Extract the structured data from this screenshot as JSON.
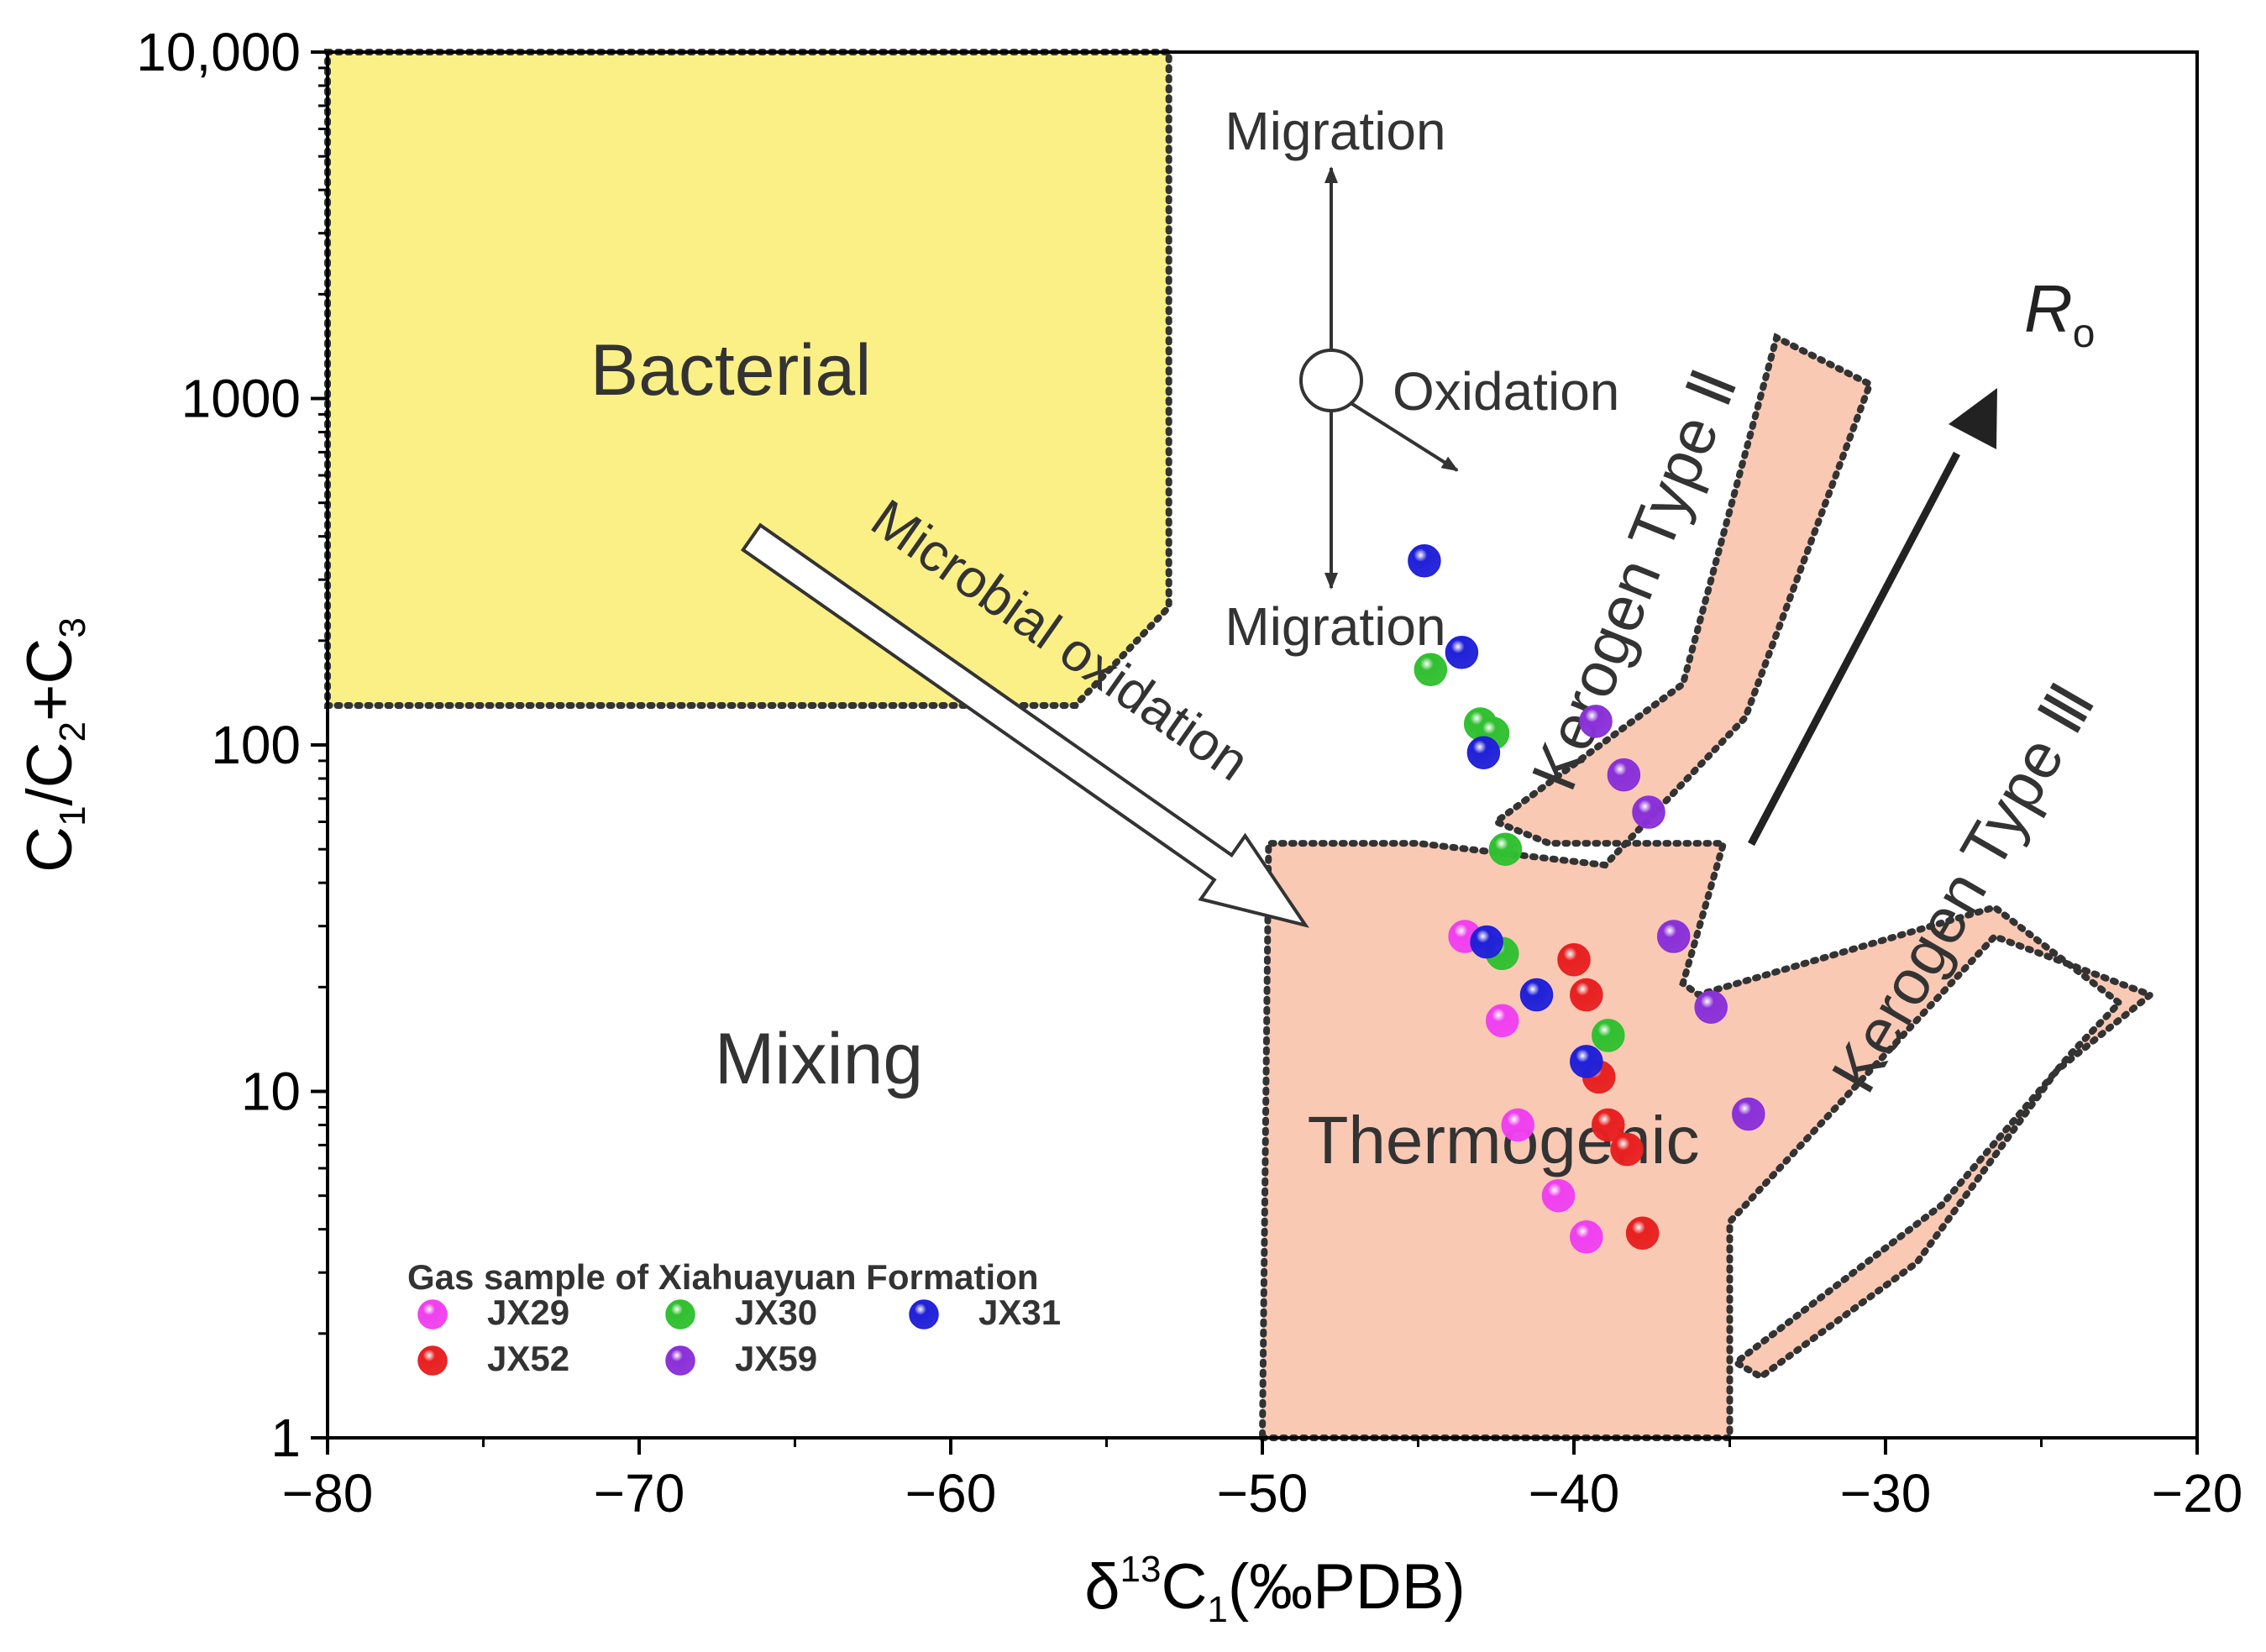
{
  "chart_data": {
    "type": "scatter",
    "xlabel": {
      "prefix": "δ",
      "sup": "13",
      "main": "C",
      "sub": "1",
      "tail": "(‰PDB)"
    },
    "ylabel": {
      "parts": [
        {
          "t": "C",
          "k": "n"
        },
        {
          "t": "1",
          "k": "sub"
        },
        {
          "t": "/C",
          "k": "n"
        },
        {
          "t": "2",
          "k": "sub"
        },
        {
          "t": "+C",
          "k": "n"
        },
        {
          "t": "3",
          "k": "sub"
        }
      ]
    },
    "xlim": [
      -80,
      -20
    ],
    "ylim": [
      1,
      10000
    ],
    "yscale": "log",
    "xticks": [
      -80,
      -70,
      -60,
      -50,
      -40,
      -30,
      -20
    ],
    "xtick_labels": [
      "−80",
      "−70",
      "−60",
      "−50",
      "−40",
      "−30",
      "−20"
    ],
    "yticks": [
      1,
      10,
      100,
      1000,
      10000
    ],
    "ytick_labels": [
      "1",
      "10",
      "100",
      "1000",
      "10,000"
    ],
    "regions": [
      {
        "name": "bacterial-region",
        "label": "Bacterial",
        "fill": "#fbf086",
        "polygon": [
          [
            -80,
            10000
          ],
          [
            -53,
            10000
          ],
          [
            -53,
            250
          ],
          [
            -56,
            130
          ],
          [
            -80,
            130
          ]
        ]
      },
      {
        "name": "thermogenic-region",
        "label": "Thermogenic",
        "fill": "#f9c9b4",
        "polygon": [
          [
            -50,
            1
          ],
          [
            -35,
            1
          ],
          [
            -35,
            4.2
          ],
          [
            -26.5,
            28
          ],
          [
            -21.5,
            19
          ],
          [
            -24.5,
            11.5
          ],
          [
            -29,
            3.2
          ],
          [
            -34,
            1.5
          ],
          [
            -34.8,
            1.65
          ],
          [
            -28.2,
            4.7
          ],
          [
            -24,
            13
          ],
          [
            -22.5,
            18
          ],
          [
            -26.5,
            34
          ],
          [
            -36,
            19
          ],
          [
            -36.5,
            20.5
          ],
          [
            -35.2,
            52
          ],
          [
            -40.8,
            52
          ],
          [
            -42.5,
            60
          ],
          [
            -36.5,
            150
          ],
          [
            -33.5,
            1500
          ],
          [
            -30.5,
            1100
          ],
          [
            -34.5,
            120
          ],
          [
            -39,
            45
          ],
          [
            -45,
            52
          ],
          [
            -49.8,
            52
          ]
        ]
      }
    ],
    "labels": {
      "bacterial": "Bacterial",
      "mixing": "Mixing",
      "thermogenic": "Thermogenic",
      "kerogen2": "Kerogen Type Ⅱ",
      "kerogen3": "Kerogen Type Ⅲ",
      "microbial": "Microbial oxidation",
      "migration_top": "Migration",
      "migration_bottom": "Migration",
      "oxidation": "Oxidation",
      "ro_main": "R",
      "ro_sub": "o"
    },
    "legend": {
      "title": "Gas sample of  Xiahuayuan Formation",
      "placement": "bottom-left"
    },
    "series": [
      {
        "name": "JX29",
        "color": "#f040f0",
        "points": [
          [
            -43.5,
            28
          ],
          [
            -42.3,
            16
          ],
          [
            -41.8,
            8
          ],
          [
            -40.5,
            5
          ],
          [
            -39.6,
            3.8
          ]
        ]
      },
      {
        "name": "JX52",
        "color": "#e82020",
        "points": [
          [
            -40,
            24
          ],
          [
            -39.6,
            19
          ],
          [
            -39.2,
            11
          ],
          [
            -38.9,
            8
          ],
          [
            -38.3,
            6.8
          ],
          [
            -37.8,
            3.9
          ]
        ]
      },
      {
        "name": "JX30",
        "color": "#30c030",
        "points": [
          [
            -44.6,
            165
          ],
          [
            -43,
            115
          ],
          [
            -42.6,
            108
          ],
          [
            -42.2,
            50
          ],
          [
            -42.3,
            25
          ],
          [
            -38.9,
            14.5
          ]
        ]
      },
      {
        "name": "JX59",
        "color": "#8a30d8",
        "points": [
          [
            -39.3,
            117
          ],
          [
            -38.4,
            82
          ],
          [
            -37.6,
            64
          ],
          [
            -36.8,
            28
          ],
          [
            -35.6,
            17.5
          ],
          [
            -34.4,
            8.6
          ]
        ]
      },
      {
        "name": "JX31",
        "color": "#2020d8",
        "points": [
          [
            -44.8,
            340
          ],
          [
            -43.6,
            185
          ],
          [
            -42.9,
            95
          ],
          [
            -42.8,
            27
          ],
          [
            -41.2,
            19
          ],
          [
            -39.6,
            12.2
          ]
        ]
      }
    ]
  }
}
